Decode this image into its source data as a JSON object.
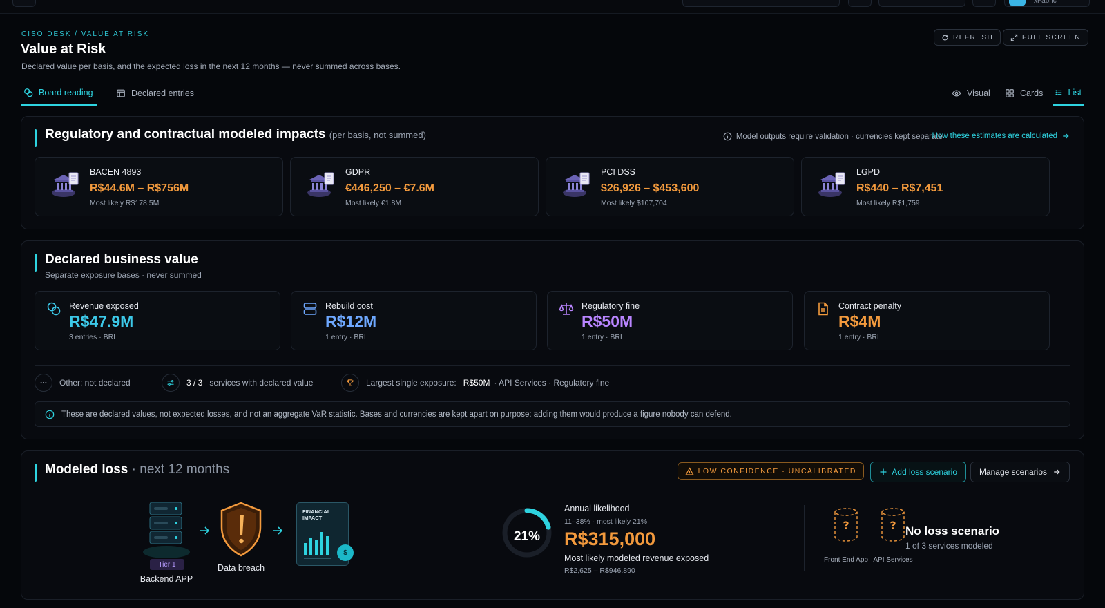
{
  "topbar": {
    "brand": "xFabric"
  },
  "header": {
    "breadcrumb": "CISO DESK / VALUE AT RISK",
    "title": "Value at Risk",
    "subtitle": "Declared value per basis, and the expected loss in the next 12 months — never summed across bases.",
    "refresh_label": "REFRESH",
    "fullscreen_label": "FULL SCREEN"
  },
  "tabs": {
    "left": [
      {
        "label": "Board reading",
        "icon": "coins-icon",
        "active": true
      },
      {
        "label": "Declared entries",
        "icon": "table-icon",
        "active": false
      }
    ],
    "view": [
      {
        "label": "Visual",
        "icon": "eye-icon",
        "active": false
      },
      {
        "label": "Cards",
        "icon": "grid-icon",
        "active": false
      },
      {
        "label": "List",
        "icon": "list-icon",
        "active": true
      }
    ]
  },
  "regulatory": {
    "title": "Regulatory and contractual modeled impacts",
    "title_suffix": "(per basis, not summed)",
    "note": "Model outputs require validation · currencies kept separate",
    "link": "How these estimates are calculated",
    "cards": [
      {
        "name": "BACEN 4893",
        "range": "R$44.6M – R$756M",
        "likely": "Most likely R$178.5M"
      },
      {
        "name": "GDPR",
        "range": "€446,250 – €7.6M",
        "likely": "Most likely €1.8M"
      },
      {
        "name": "PCI DSS",
        "range": "$26,926 – $453,600",
        "likely": "Most likely $107,704"
      },
      {
        "name": "LGPD",
        "range": "R$440 – R$7,451",
        "likely": "Most likely R$1,759"
      }
    ]
  },
  "business": {
    "title": "Declared business value",
    "subtitle": "Separate exposure bases · never summed",
    "cards": [
      {
        "label": "Revenue exposed",
        "value": "R$47.9M",
        "meta": "3 entries · BRL",
        "color": "#3cc8e8",
        "icon": "coins-icon"
      },
      {
        "label": "Rebuild cost",
        "value": "R$12M",
        "meta": "1 entry · BRL",
        "color": "#6ea8ff",
        "icon": "server-icon"
      },
      {
        "label": "Regulatory fine",
        "value": "R$50M",
        "meta": "1 entry · BRL",
        "color": "#b985ff",
        "icon": "scale-icon"
      },
      {
        "label": "Contract penalty",
        "value": "R$4M",
        "meta": "1 entry · BRL",
        "color": "#f39a3d",
        "icon": "document-icon"
      }
    ],
    "other": "Other: not declared",
    "services_count": "3 / 3",
    "services_text": "services with declared value",
    "largest_label": "Largest single exposure:",
    "largest_value": "R$50M",
    "largest_meta": "· API Services · Regulatory fine",
    "disclaimer": "These are declared values, not expected losses, and not an aggregate VaR statistic. Bases and currencies are kept apart on purpose: adding them would produce a figure nobody can defend."
  },
  "modeled": {
    "title": "Modeled loss",
    "title_suffix": "· next 12 months",
    "badge": "LOW CONFIDENCE · UNCALIBRATED",
    "add_label": "Add loss scenario",
    "manage_label": "Manage scenarios",
    "flow": {
      "tier": "Tier 1",
      "asset": "Backend APP",
      "event": "Data breach",
      "impact_card": "FINANCIAL IMPACT"
    },
    "likelihood": {
      "title": "Annual likelihood",
      "range": "11–38% · most likely 21%",
      "percent_label": "21%",
      "percent": 0.21,
      "value": "R$315,000",
      "description": "Most likely modeled revenue exposed",
      "value_range": "R$2,625 – R$946,890"
    },
    "services": [
      {
        "name": "Front End App"
      },
      {
        "name": "API Services"
      }
    ],
    "no_scenario_title": "No loss scenario",
    "no_scenario_sub": "1 of 3 services modeled"
  }
}
